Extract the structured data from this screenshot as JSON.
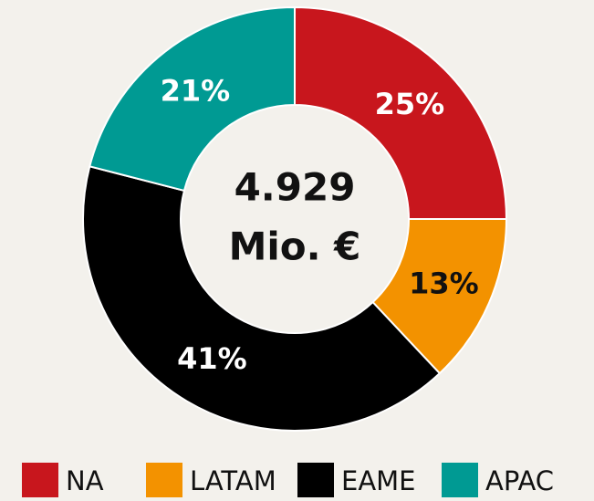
{
  "chart_data": {
    "type": "donut",
    "categories": [
      "NA",
      "LATAM",
      "EAME",
      "APAC"
    ],
    "values": [
      25,
      13,
      41,
      21
    ],
    "value_labels": [
      "25%",
      "13%",
      "41%",
      "21%"
    ],
    "colors": [
      "#c8161d",
      "#f39200",
      "#000000",
      "#009a93"
    ],
    "center_text": [
      "4.929",
      "Mio. €"
    ]
  }
}
